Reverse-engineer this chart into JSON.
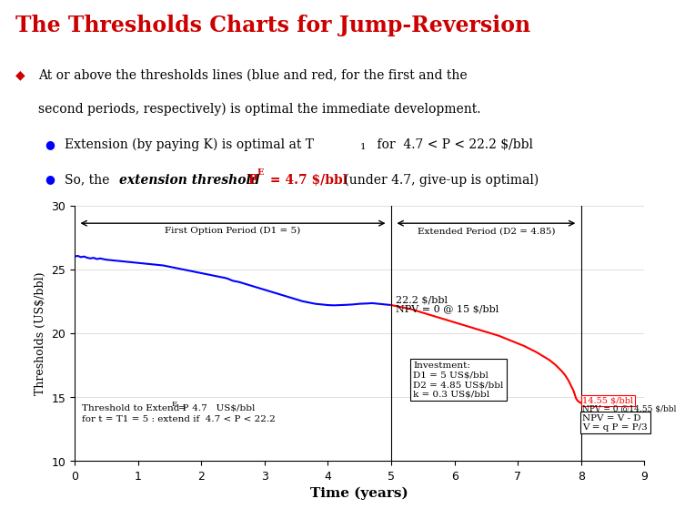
{
  "title": "The Thresholds Charts for Jump-Reversion",
  "title_color": "#cc0000",
  "bg_color": "#ffffff",
  "xlabel": "Time (years)",
  "ylabel": "Thresholds (US$/bbl)",
  "xlim": [
    0,
    9
  ],
  "ylim": [
    10,
    30
  ],
  "yticks": [
    10,
    15,
    20,
    25,
    30
  ],
  "xticks": [
    0,
    1,
    2,
    3,
    4,
    5,
    6,
    7,
    8,
    9
  ],
  "blue_x": [
    0.0,
    0.05,
    0.1,
    0.15,
    0.2,
    0.25,
    0.3,
    0.35,
    0.4,
    0.45,
    0.5,
    0.6,
    0.7,
    0.8,
    0.9,
    1.0,
    1.1,
    1.2,
    1.3,
    1.4,
    1.5,
    1.6,
    1.7,
    1.8,
    1.9,
    2.0,
    2.1,
    2.2,
    2.3,
    2.4,
    2.5,
    2.6,
    2.7,
    2.8,
    2.9,
    3.0,
    3.1,
    3.2,
    3.3,
    3.4,
    3.5,
    3.6,
    3.7,
    3.8,
    3.9,
    4.0,
    4.1,
    4.2,
    4.3,
    4.4,
    4.5,
    4.6,
    4.7,
    4.8,
    4.9,
    5.0
  ],
  "blue_y": [
    26.0,
    26.05,
    25.95,
    26.0,
    25.9,
    25.85,
    25.9,
    25.8,
    25.85,
    25.8,
    25.75,
    25.7,
    25.65,
    25.6,
    25.55,
    25.5,
    25.45,
    25.4,
    25.35,
    25.3,
    25.2,
    25.1,
    25.0,
    24.9,
    24.8,
    24.7,
    24.6,
    24.5,
    24.4,
    24.3,
    24.1,
    24.0,
    23.85,
    23.7,
    23.55,
    23.4,
    23.25,
    23.1,
    22.95,
    22.8,
    22.65,
    22.5,
    22.4,
    22.3,
    22.25,
    22.2,
    22.18,
    22.2,
    22.22,
    22.25,
    22.3,
    22.32,
    22.35,
    22.3,
    22.25,
    22.2
  ],
  "red_x": [
    5.0,
    5.05,
    5.1,
    5.2,
    5.3,
    5.4,
    5.5,
    5.6,
    5.7,
    5.8,
    5.9,
    6.0,
    6.1,
    6.2,
    6.3,
    6.4,
    6.5,
    6.6,
    6.7,
    6.8,
    6.9,
    7.0,
    7.1,
    7.2,
    7.3,
    7.4,
    7.5,
    7.6,
    7.7,
    7.75,
    7.8,
    7.85,
    7.88,
    7.9,
    7.92,
    7.94,
    7.96,
    7.98,
    8.0
  ],
  "red_y": [
    22.2,
    22.15,
    22.1,
    22.0,
    21.9,
    21.75,
    21.6,
    21.45,
    21.3,
    21.15,
    21.0,
    20.85,
    20.7,
    20.55,
    20.4,
    20.25,
    20.1,
    19.95,
    19.8,
    19.6,
    19.4,
    19.2,
    19.0,
    18.75,
    18.5,
    18.2,
    17.9,
    17.5,
    17.0,
    16.7,
    16.3,
    15.8,
    15.5,
    15.2,
    14.9,
    14.75,
    14.65,
    14.58,
    14.55
  ],
  "vline1_x": 5.0,
  "vline2_x": 8.0,
  "label_period1": "First Option Period (D1 = 5)",
  "label_period2": "Extended Period (D2 = 4.85)",
  "box_invest_text": "Investment:\nD1 = 5 US$/bbl\nD2 = 4.85 US$/bbl\nk = 0.3 US$/bbl",
  "box_thresh_line1": "Threshold to Extend P",
  "box_thresh_line1b": " =  4.7   US$/bbl",
  "box_thresh_line2": "for t = T1 = 5 : extend if  4.7 < P < 22.2",
  "annot_1455": "14.55 $/bbl",
  "annot_npv2": "NPV = 0 @14.55 $/bbl",
  "box_npv_text": "NPV = V - D\nV = q P = P/3",
  "annot_222": "22.2 $/bbl",
  "annot_npv1": "NPV = 0 @ 15 $/bbl"
}
